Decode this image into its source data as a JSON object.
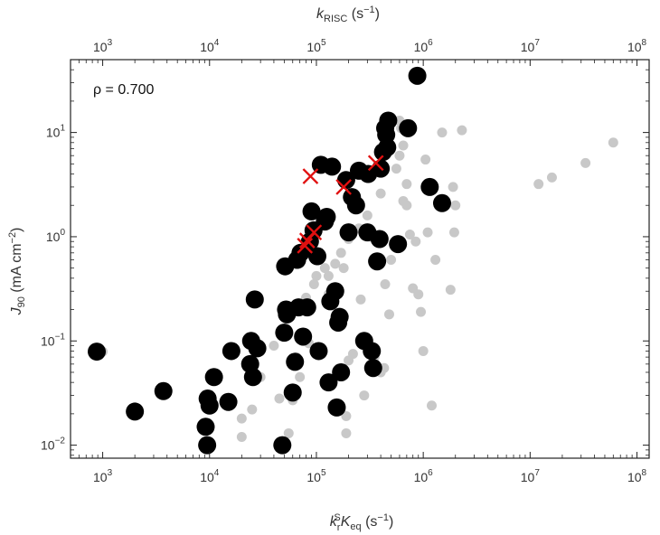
{
  "chart_data": {
    "type": "scatter",
    "annotation": "ρ = 0.700",
    "x_axis_bottom": {
      "scale": "log",
      "range": [
        500,
        130000000
      ],
      "ticks": [
        1000,
        10000,
        100000,
        1000000,
        10000000,
        100000000
      ],
      "tick_labels": [
        {
          "base": "10",
          "exp": "3"
        },
        {
          "base": "10",
          "exp": "4"
        },
        {
          "base": "10",
          "exp": "5"
        },
        {
          "base": "10",
          "exp": "6"
        },
        {
          "base": "10",
          "exp": "7"
        },
        {
          "base": "10",
          "exp": "8"
        }
      ],
      "label_parts": {
        "k": "k",
        "sub": "r",
        "sup": "S",
        "K": "K",
        "ksub": "eq",
        "unit": " (s",
        "unit_sup": "−1",
        "close": ")"
      }
    },
    "x_axis_top": {
      "scale": "log",
      "range": [
        500,
        130000000
      ],
      "ticks": [
        1000,
        10000,
        100000,
        1000000,
        10000000,
        100000000
      ],
      "tick_labels": [
        {
          "base": "10",
          "exp": "3"
        },
        {
          "base": "10",
          "exp": "4"
        },
        {
          "base": "10",
          "exp": "5"
        },
        {
          "base": "10",
          "exp": "6"
        },
        {
          "base": "10",
          "exp": "7"
        },
        {
          "base": "10",
          "exp": "8"
        }
      ],
      "label_parts": {
        "k": "k",
        "sub": "RISC",
        "unit": " (s",
        "unit_sup": "−1",
        "close": ")"
      }
    },
    "y_axis": {
      "scale": "log",
      "range": [
        0.0075,
        50
      ],
      "ticks": [
        0.01,
        0.1,
        1,
        10
      ],
      "tick_labels": [
        {
          "base": "10",
          "exp": "−2"
        },
        {
          "base": "10",
          "exp": "−1"
        },
        {
          "base": "10",
          "exp": "0"
        },
        {
          "base": "10",
          "exp": "1"
        }
      ],
      "label_parts": {
        "j": "J",
        "sub": "90",
        "unit": " (mA cm",
        "unit_sup": "−2",
        "close": ")"
      }
    },
    "series": [
      {
        "marker": "gray-dot",
        "color": "#c8c8c8",
        "points": [
          [
            1000,
            0.079
          ],
          [
            20000,
            0.012
          ],
          [
            20000,
            0.018
          ],
          [
            45000,
            0.028
          ],
          [
            40000,
            0.09
          ],
          [
            30000,
            0.045
          ],
          [
            25000,
            0.022
          ],
          [
            55000,
            0.013
          ],
          [
            60000,
            0.027
          ],
          [
            65000,
            0.07
          ],
          [
            70000,
            0.045
          ],
          [
            75000,
            0.1
          ],
          [
            80000,
            0.26
          ],
          [
            85000,
            0.095
          ],
          [
            95000,
            0.35
          ],
          [
            100000,
            0.42
          ],
          [
            110000,
            0.08
          ],
          [
            120000,
            0.5
          ],
          [
            130000,
            0.28
          ],
          [
            150000,
            0.14
          ],
          [
            160000,
            0.18
          ],
          [
            180000,
            0.5
          ],
          [
            190000,
            0.013
          ],
          [
            190000,
            0.019
          ],
          [
            200000,
            0.065
          ],
          [
            220000,
            0.075
          ],
          [
            250000,
            1.9
          ],
          [
            260000,
            0.25
          ],
          [
            280000,
            0.03
          ],
          [
            300000,
            0.09
          ],
          [
            320000,
            1.0
          ],
          [
            350000,
            0.07
          ],
          [
            400000,
            0.05
          ],
          [
            430000,
            0.055
          ],
          [
            440000,
            0.35
          ],
          [
            480000,
            0.18
          ],
          [
            500000,
            0.6
          ],
          [
            550000,
            0.85
          ],
          [
            600000,
            13
          ],
          [
            620000,
            11
          ],
          [
            650000,
            2.2
          ],
          [
            700000,
            2.0
          ],
          [
            750000,
            1.05
          ],
          [
            800000,
            0.32
          ],
          [
            850000,
            0.9
          ],
          [
            900000,
            0.28
          ],
          [
            950000,
            0.19
          ],
          [
            1000000,
            0.08
          ],
          [
            1050000,
            5.5
          ],
          [
            1100000,
            1.1
          ],
          [
            1200000,
            0.024
          ],
          [
            1300000,
            0.6
          ],
          [
            1500000,
            10
          ],
          [
            1800000,
            0.31
          ],
          [
            1900000,
            3.0
          ],
          [
            1950000,
            1.1
          ],
          [
            2000000,
            2.0
          ],
          [
            2300000,
            10.5
          ],
          [
            12000000,
            3.2
          ],
          [
            16000000,
            3.7
          ],
          [
            33000000,
            5.1
          ],
          [
            60000000,
            8.0
          ],
          [
            750000,
            12
          ],
          [
            650000,
            7.5
          ],
          [
            600000,
            6
          ],
          [
            920000,
            36
          ],
          [
            560000,
            4.5
          ],
          [
            700000,
            3.2
          ],
          [
            400000,
            2.6
          ],
          [
            300000,
            1.6
          ],
          [
            250000,
            1.2
          ],
          [
            200000,
            0.95
          ],
          [
            170000,
            0.7
          ],
          [
            150000,
            0.55
          ],
          [
            130000,
            0.42
          ]
        ]
      },
      {
        "marker": "black-dot",
        "color": "#000000",
        "points": [
          [
            880,
            0.079
          ],
          [
            2000,
            0.021
          ],
          [
            3700,
            0.033
          ],
          [
            9200,
            0.015
          ],
          [
            9500,
            0.01
          ],
          [
            9600,
            0.028
          ],
          [
            10000,
            0.024
          ],
          [
            11000,
            0.045
          ],
          [
            15000,
            0.026
          ],
          [
            16000,
            0.08
          ],
          [
            24000,
            0.06
          ],
          [
            24500,
            0.1
          ],
          [
            25500,
            0.045
          ],
          [
            26500,
            0.25
          ],
          [
            28000,
            0.085
          ],
          [
            48000,
            0.01
          ],
          [
            50000,
            0.12
          ],
          [
            51000,
            0.52
          ],
          [
            52000,
            0.2
          ],
          [
            53000,
            0.18
          ],
          [
            60000,
            0.032
          ],
          [
            63000,
            0.063
          ],
          [
            66000,
            0.6
          ],
          [
            68000,
            0.21
          ],
          [
            71000,
            0.7
          ],
          [
            75000,
            0.11
          ],
          [
            82000,
            0.21
          ],
          [
            87000,
            0.9
          ],
          [
            90000,
            1.75
          ],
          [
            94000,
            1.15
          ],
          [
            102000,
            0.65
          ],
          [
            105000,
            0.08
          ],
          [
            110000,
            4.9
          ],
          [
            120000,
            1.4
          ],
          [
            125000,
            1.55
          ],
          [
            130000,
            0.04
          ],
          [
            135000,
            0.24
          ],
          [
            140000,
            4.7
          ],
          [
            150000,
            0.3
          ],
          [
            155000,
            0.023
          ],
          [
            160000,
            0.15
          ],
          [
            165000,
            0.17
          ],
          [
            170000,
            0.05
          ],
          [
            190000,
            3.5
          ],
          [
            200000,
            1.1
          ],
          [
            215000,
            2.4
          ],
          [
            235000,
            2.0
          ],
          [
            250000,
            4.3
          ],
          [
            280000,
            0.1
          ],
          [
            300000,
            1.1
          ],
          [
            330000,
            0.08
          ],
          [
            340000,
            0.055
          ],
          [
            370000,
            0.58
          ],
          [
            390000,
            0.95
          ],
          [
            400000,
            4.5
          ],
          [
            420000,
            6.5
          ],
          [
            440000,
            11
          ],
          [
            450000,
            9.5
          ],
          [
            460000,
            7.2
          ],
          [
            470000,
            13
          ],
          [
            580000,
            0.85
          ],
          [
            720000,
            11
          ],
          [
            880000,
            35
          ],
          [
            1150000,
            3.0
          ],
          [
            1500000,
            2.1
          ],
          [
            305000,
            4.0
          ]
        ]
      },
      {
        "marker": "red-x",
        "color": "#e11010",
        "points": [
          [
            88000,
            3.8
          ],
          [
            95000,
            1.1
          ],
          [
            78000,
            0.82
          ],
          [
            82000,
            0.92
          ],
          [
            180000,
            3.0
          ],
          [
            360000,
            5.1
          ]
        ]
      }
    ]
  }
}
